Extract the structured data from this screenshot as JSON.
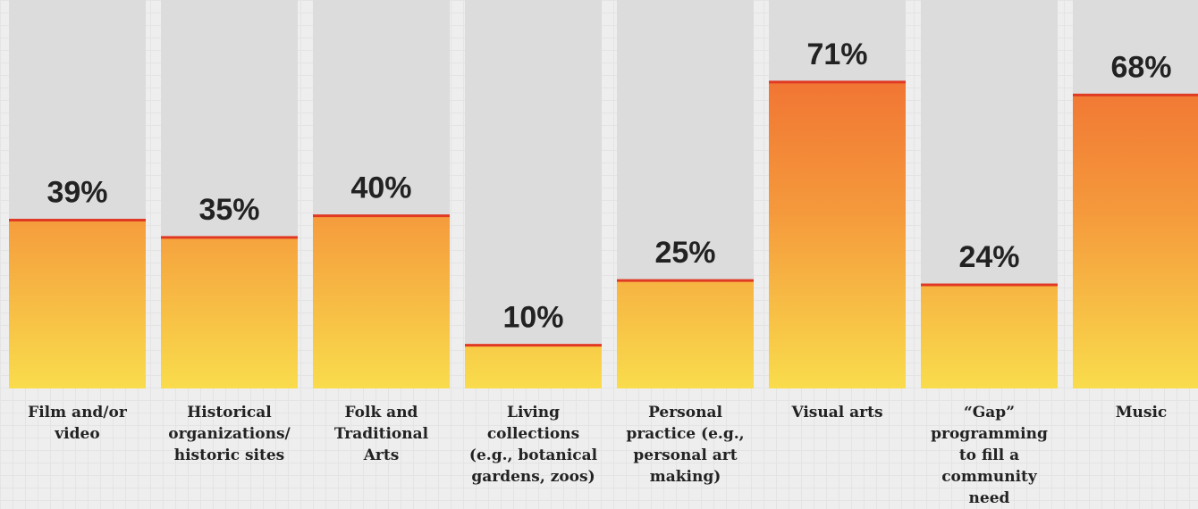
{
  "chart_data": {
    "type": "bar",
    "categories": [
      "Film and/or video",
      "Historical organizations/ historic sites",
      "Folk and Traditional Arts",
      "Living collections (e.g., botanical gardens, zoos)",
      "Personal practice (e.g., personal art making)",
      "Visual arts",
      "“Gap” programming to fill a community need",
      "Music"
    ],
    "values": [
      39,
      35,
      40,
      10,
      25,
      71,
      24,
      68
    ],
    "value_labels": [
      "39%",
      "35%",
      "40%",
      "10%",
      "25%",
      "71%",
      "24%",
      "68%"
    ],
    "color": "#f59a3c",
    "ylim": [
      0,
      90
    ]
  }
}
